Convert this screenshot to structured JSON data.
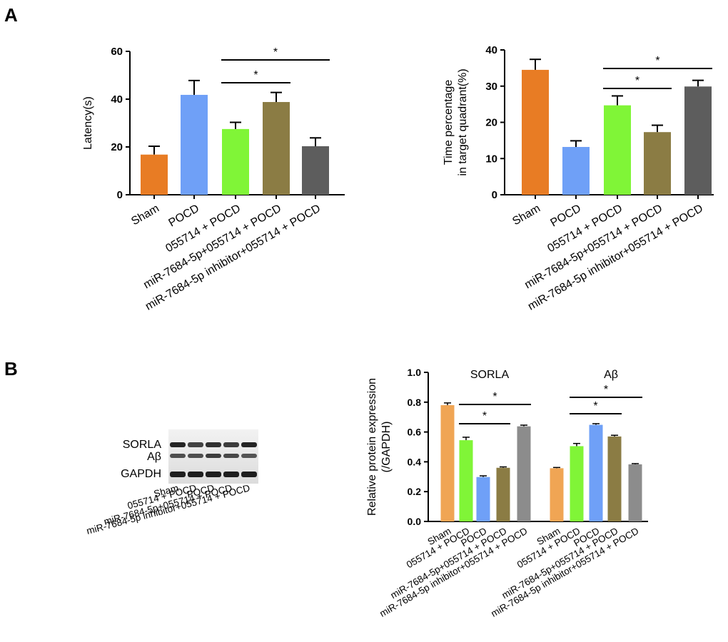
{
  "panels": {
    "a": "A",
    "b": "B"
  },
  "colors": {
    "sham": "#e87c24",
    "pocd": "#6fa0f7",
    "g055714": "#80f537",
    "mir": "#8b7c44",
    "inhibitor": "#5d5d5d",
    "sham_b": "#f0a554",
    "inhibitor_b": "#8c8c8c"
  },
  "chart_data": [
    {
      "type": "bar",
      "id": "latency",
      "title": "",
      "xlabel": "",
      "ylabel": "Latency(s)",
      "ylim": [
        0,
        60
      ],
      "yticks": [
        0,
        20,
        40,
        60
      ],
      "categories": [
        "Sham",
        "POCD",
        "055714  + POCD",
        "miR-7684-5p+055714  + POCD",
        "miR-7684-5p  inhibitor+055714  + POCD"
      ],
      "values": [
        16.8,
        41.8,
        27.5,
        38.8,
        20.3
      ],
      "errors": [
        3.5,
        6.0,
        2.8,
        4.0,
        3.5
      ],
      "bar_colors": [
        "sham",
        "pocd",
        "g055714",
        "mir",
        "inhibitor"
      ],
      "significance": [
        {
          "from": 2,
          "to": 3,
          "label": "*"
        },
        {
          "from": 2,
          "to": 4,
          "label": "*"
        }
      ]
    },
    {
      "type": "bar",
      "id": "time_percentage",
      "title": "",
      "xlabel": "",
      "ylabel": [
        "Time percentage",
        "in target quadrant(%)"
      ],
      "ylim": [
        0,
        40
      ],
      "yticks": [
        0,
        10,
        20,
        30,
        40
      ],
      "categories": [
        "Sham",
        "POCD",
        "055714  + POCD",
        "miR-7684-5p+055714  + POCD",
        "miR-7684-5p  inhibitor+055714  + POCD"
      ],
      "values": [
        34.5,
        13.2,
        24.7,
        17.3,
        29.9
      ],
      "errors": [
        2.9,
        1.7,
        2.6,
        1.9,
        1.7
      ],
      "bar_colors": [
        "sham",
        "pocd",
        "g055714",
        "mir",
        "inhibitor"
      ],
      "significance": [
        {
          "from": 2,
          "to": 3,
          "label": "*"
        },
        {
          "from": 2,
          "to": 4,
          "label": "*"
        }
      ]
    },
    {
      "type": "bar",
      "id": "protein_expression",
      "title": "",
      "xlabel": "",
      "ylabel": [
        "Relative protein expression",
        "(/GAPDH)"
      ],
      "ylim": [
        0,
        1.0
      ],
      "yticks": [
        "0.0",
        "0.2",
        "0.4",
        "0.6",
        "0.8",
        "1.0"
      ],
      "categories": [
        "Sham",
        "055714 + POCD",
        "POCD",
        "miR-7684-5p+055714 + POCD",
        "miR-7684-5p inhibitor+055714 + POCD"
      ],
      "series": [
        {
          "name": "SORLA",
          "values": [
            0.78,
            0.545,
            0.298,
            0.36,
            0.638
          ],
          "errors": [
            0.015,
            0.02,
            0.008,
            0.006,
            0.008
          ],
          "bar_colors": [
            "sham_b",
            "g055714",
            "pocd",
            "mir",
            "inhibitor_b"
          ],
          "significance": [
            {
              "from": 1,
              "to": 3,
              "label": "*"
            },
            {
              "from": 1,
              "to": 4,
              "label": "*"
            }
          ]
        },
        {
          "name": "Aβ",
          "values": [
            0.357,
            0.505,
            0.648,
            0.57,
            0.383
          ],
          "errors": [
            0.005,
            0.018,
            0.008,
            0.008,
            0.005
          ],
          "bar_colors": [
            "sham_b",
            "g055714",
            "pocd",
            "mir",
            "inhibitor_b"
          ],
          "significance": [
            {
              "from": 1,
              "to": 3,
              "label": "*"
            },
            {
              "from": 1,
              "to": 4,
              "label": "*"
            }
          ]
        }
      ]
    }
  ],
  "blot": {
    "bands": [
      "SORLA",
      "Aβ",
      "GAPDH"
    ],
    "lanes": [
      "Sham",
      "055714 + POCD",
      "POCD",
      "miR-7684-5p+055714 + POCD",
      "miR-7684-5p inhibitor+055714 + POCD"
    ]
  }
}
